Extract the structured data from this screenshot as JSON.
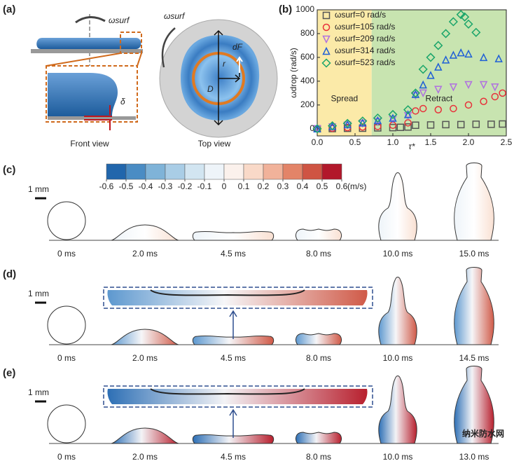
{
  "panel_a": {
    "label": "(a)",
    "omega": "ωsurf",
    "omega_top": "ωsurf",
    "delta": "δ",
    "front_view": "Front view",
    "top_view": "Top view",
    "dF": "dF",
    "r": "r",
    "D": "D"
  },
  "chart_data": {
    "type": "scatter",
    "label": "(b)",
    "xlabel": "τ*",
    "ylabel": "ωdrop (rad/s)",
    "xlim": [
      0,
      2.5
    ],
    "ylim": [
      -60,
      1000
    ],
    "xticks": [
      {
        "value": 0,
        "label": "0.0"
      },
      0.5,
      {
        "value": 1,
        "label": "1.0"
      },
      1.5,
      {
        "value": 2,
        "label": "2.0"
      },
      2.5
    ],
    "yticks": [
      0,
      200,
      400,
      600,
      800,
      1000
    ],
    "regions": [
      {
        "label": "Spread",
        "from": 0,
        "to": 0.72,
        "color": "#fbeaa8"
      },
      {
        "label": "Retract",
        "from": 0.72,
        "to": 2.5,
        "color": "#c8e4b0"
      }
    ],
    "legend": "upper left",
    "series": [
      {
        "name": "ωsurf=0 rad/s",
        "color": "#555555",
        "marker": "square",
        "x": [
          0,
          0.2,
          0.4,
          0.6,
          0.8,
          1.0,
          1.1,
          1.2,
          1.3,
          1.5,
          1.7,
          1.9,
          2.1,
          2.3,
          2.45
        ],
        "values": [
          0,
          2,
          4,
          5,
          8,
          10,
          12,
          15,
          30,
          32,
          35,
          35,
          38,
          38,
          40
        ]
      },
      {
        "name": "ωsurf=105 rad/s",
        "color": "#e8303a",
        "marker": "circle",
        "x": [
          0,
          0.2,
          0.4,
          0.6,
          0.8,
          1.0,
          1.2,
          1.3,
          1.4,
          1.6,
          1.8,
          2.0,
          2.2,
          2.35,
          2.45
        ],
        "values": [
          0,
          5,
          10,
          15,
          20,
          30,
          50,
          150,
          170,
          160,
          170,
          200,
          230,
          270,
          300
        ]
      },
      {
        "name": "ωsurf=209 rad/s",
        "color": "#b070e0",
        "marker": "triangle-down",
        "x": [
          0,
          0.2,
          0.4,
          0.6,
          0.8,
          1.0,
          1.2,
          1.3,
          1.4,
          1.6,
          1.8,
          2.0,
          2.2,
          2.35
        ],
        "values": [
          0,
          15,
          30,
          45,
          60,
          80,
          110,
          280,
          300,
          330,
          350,
          370,
          370,
          350
        ]
      },
      {
        "name": "ωsurf=314 rad/s",
        "color": "#1f5fd6",
        "marker": "triangle",
        "x": [
          0,
          0.2,
          0.4,
          0.6,
          0.8,
          1.0,
          1.2,
          1.3,
          1.4,
          1.5,
          1.6,
          1.7,
          1.8,
          1.9,
          2.0,
          2.2,
          2.4
        ],
        "values": [
          0,
          20,
          35,
          50,
          70,
          90,
          120,
          290,
          370,
          450,
          520,
          580,
          620,
          640,
          630,
          600,
          590
        ]
      },
      {
        "name": "ωsurf=523 rad/s",
        "color": "#1aa56a",
        "marker": "diamond",
        "x": [
          0,
          0.2,
          0.4,
          0.6,
          0.8,
          1.0,
          1.2,
          1.3,
          1.4,
          1.5,
          1.6,
          1.7,
          1.8,
          1.9,
          1.95,
          2.0,
          2.1
        ],
        "values": [
          0,
          25,
          45,
          65,
          90,
          120,
          160,
          300,
          500,
          600,
          700,
          800,
          900,
          960,
          940,
          880,
          810
        ]
      }
    ]
  },
  "colorbar": {
    "ticks": [
      -0.6,
      -0.5,
      -0.4,
      -0.3,
      -0.2,
      -0.1,
      0,
      0.1,
      0.2,
      0.3,
      0.4,
      0.5,
      0.6
    ],
    "colors": [
      "#2166ac",
      "#4a8cc4",
      "#7fb3d8",
      "#a9cde6",
      "#d2e5f1",
      "#eef4f9",
      "#fbf1ec",
      "#f9d9c8",
      "#f1b29a",
      "#e38468",
      "#cf5443",
      "#b2182b"
    ],
    "unit": "(m/s)"
  },
  "panels": [
    {
      "label": "(c)",
      "scale": "1 mm",
      "times": [
        "0 ms",
        "2.0 ms",
        "4.5 ms",
        "8.0 ms",
        "10.0 ms",
        "15.0 ms"
      ]
    },
    {
      "label": "(d)",
      "scale": "1 mm",
      "times": [
        "0 ms",
        "2.0 ms",
        "4.5 ms",
        "8.0 ms",
        "10.0 ms",
        "14.5 ms"
      ]
    },
    {
      "label": "(e)",
      "scale": "1 mm",
      "times": [
        "0 ms",
        "2.0 ms",
        "4.5 ms",
        "8.0 ms",
        "10.0 ms",
        "13.0 ms"
      ]
    }
  ],
  "watermark": "纳米防水网"
}
